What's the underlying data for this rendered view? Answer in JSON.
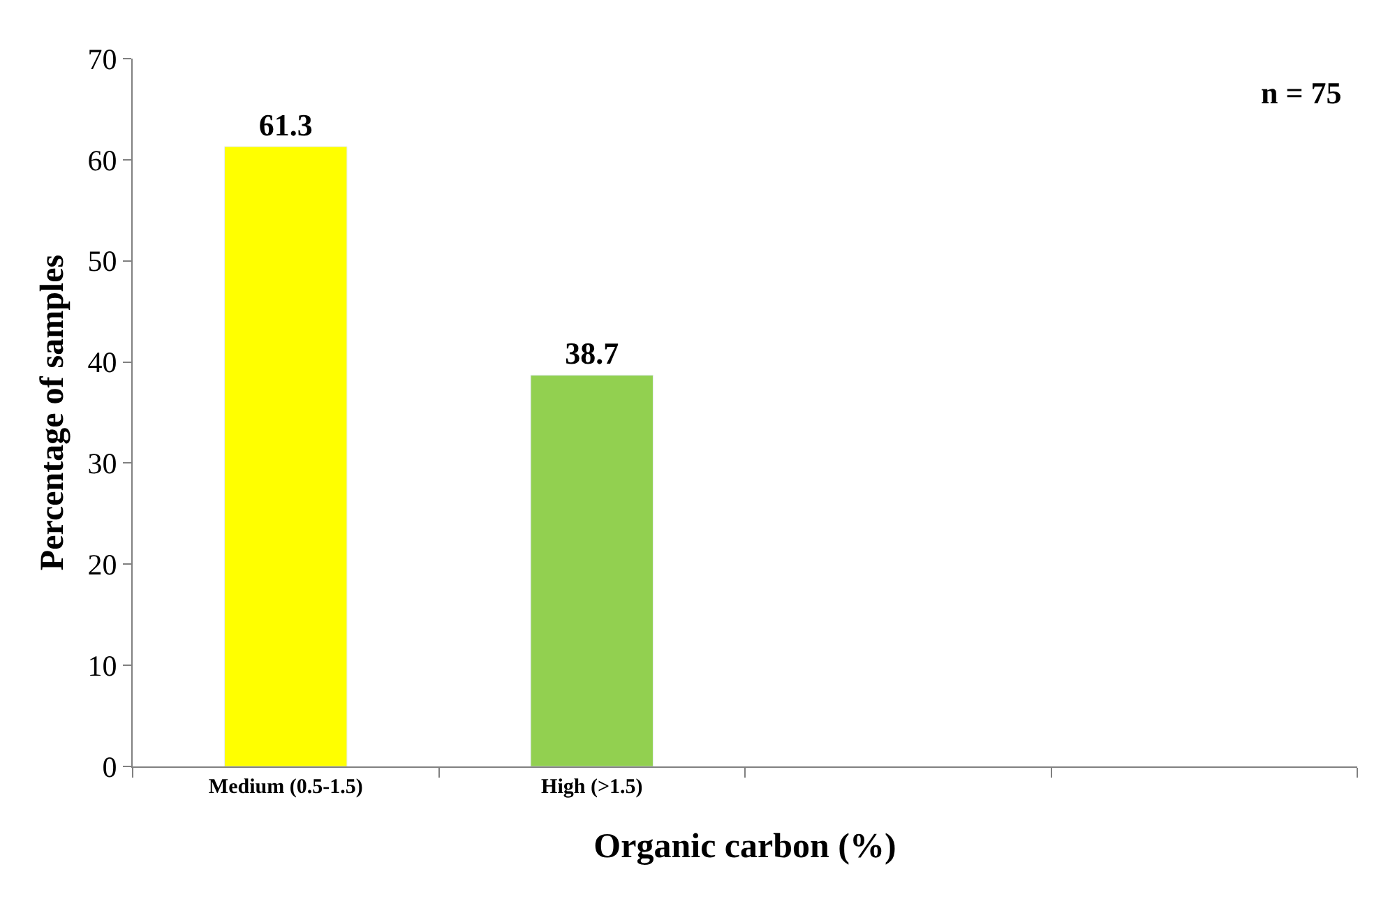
{
  "chart_data": {
    "type": "bar",
    "categories": [
      "Medium (0.5-1.5)",
      "High (>1.5)",
      null,
      null
    ],
    "values": [
      61.3,
      38.7,
      null,
      null
    ],
    "colors": [
      "#ffff00",
      "#92d050",
      null,
      null
    ],
    "xlabel": "Organic carbon (%)",
    "ylabel": "Percentage of samples",
    "ylim": [
      0,
      70
    ],
    "yticks": [
      0,
      10,
      20,
      30,
      40,
      50,
      60,
      70
    ],
    "data_labels": true,
    "annotations": [
      "n = 75"
    ]
  }
}
